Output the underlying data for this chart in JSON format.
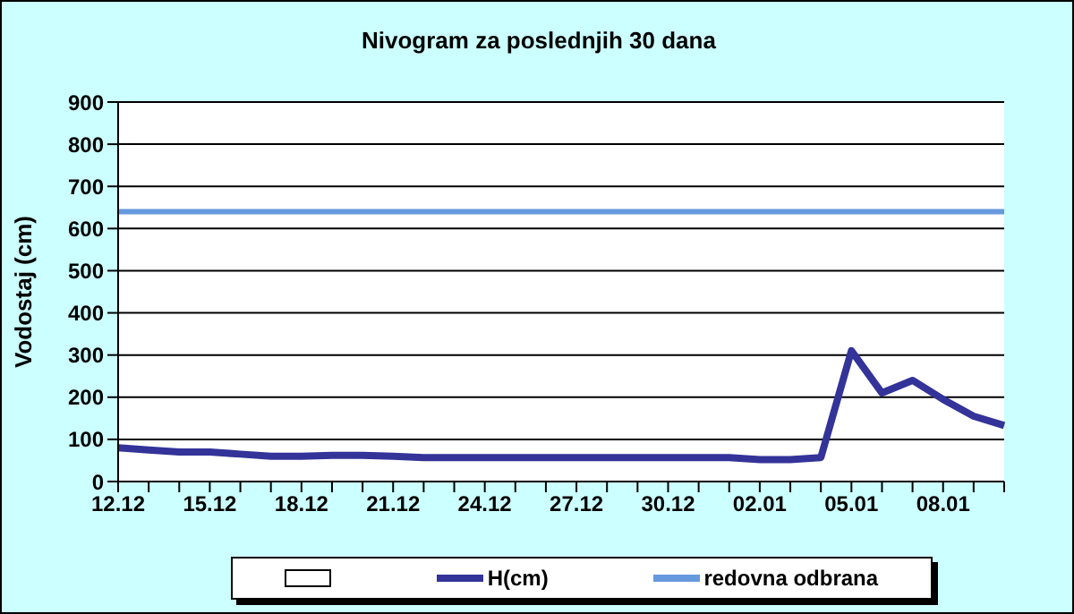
{
  "chart_data": {
    "type": "line",
    "title": "Nivogram za poslednjih 30 dana",
    "ylabel": "Vodostaj (cm)",
    "categories": [
      "12.12",
      null,
      null,
      "15.12",
      null,
      null,
      "18.12",
      null,
      null,
      "21.12",
      null,
      null,
      "24.12",
      null,
      null,
      "27.12",
      null,
      null,
      "30.12",
      null,
      null,
      "02.01",
      null,
      null,
      "05.01",
      null,
      null,
      "08.01",
      null,
      null
    ],
    "series": [
      {
        "name": "H(cm)",
        "color": "#333399",
        "values": [
          80,
          75,
          70,
          70,
          65,
          60,
          60,
          62,
          62,
          60,
          57,
          57,
          57,
          57,
          57,
          57,
          57,
          57,
          57,
          57,
          57,
          52,
          52,
          57,
          310,
          210,
          240,
          195,
          155,
          133
        ]
      }
    ],
    "ref_lines": [
      {
        "axis": "y",
        "value": 640,
        "label": "redovna odbrana",
        "color": "#6699dd"
      }
    ],
    "ylim": [
      0,
      900
    ],
    "yticks": [
      0,
      100,
      200,
      300,
      400,
      500,
      600,
      700,
      800,
      900
    ],
    "grid": "y",
    "legend": "bottom",
    "marker": "none",
    "line_style": "solid"
  }
}
